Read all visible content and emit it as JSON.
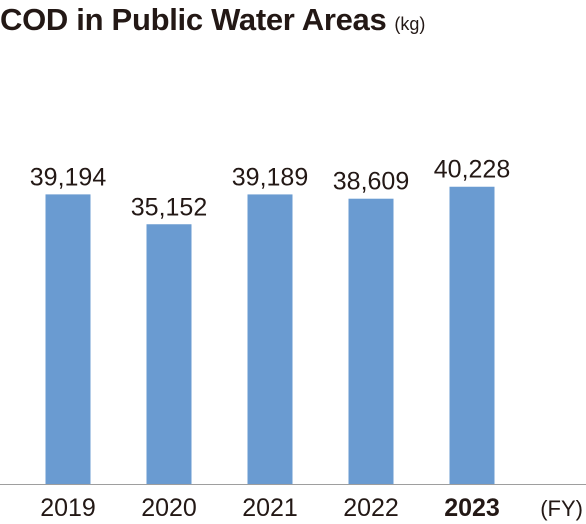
{
  "chart_data": {
    "type": "bar",
    "title": "COD in Public Water Areas",
    "unit": "(kg)",
    "xlabel": "(FY)",
    "categories": [
      "2019",
      "2020",
      "2021",
      "2022",
      "2023"
    ],
    "values": [
      39194,
      35152,
      39189,
      38609,
      40228
    ],
    "value_labels": [
      "39,194",
      "35,152",
      "39,189",
      "38,609",
      "40,228"
    ],
    "highlight_category": "2023",
    "ylim": [
      0,
      65500
    ],
    "grid": false,
    "colors": {
      "bar": "#6a9bd1",
      "axis": "#9e9e9e",
      "text": "#231815"
    }
  }
}
